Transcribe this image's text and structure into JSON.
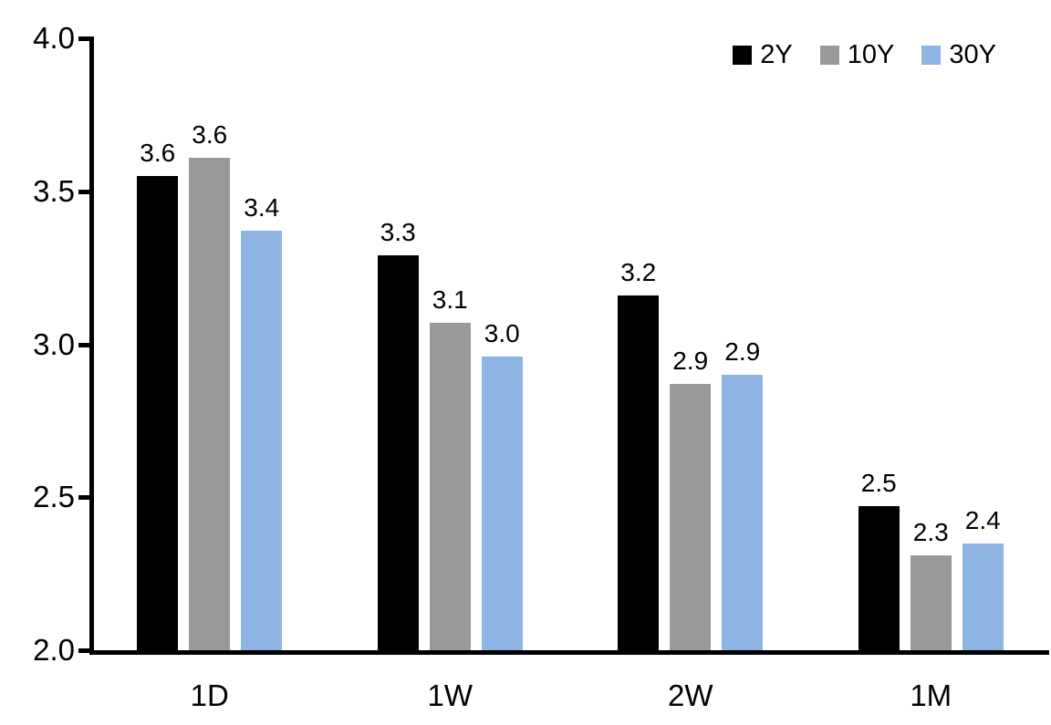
{
  "chart_data": {
    "type": "bar",
    "title": "",
    "xlabel": "",
    "ylabel": "",
    "grid": false,
    "legend_position": "top-right",
    "categories": [
      "1D",
      "1W",
      "2W",
      "1M"
    ],
    "series": [
      {
        "name": "2Y",
        "color": "#000000",
        "values": [
          3.55,
          3.29,
          3.16,
          2.47
        ],
        "labels": [
          "3.6",
          "3.3",
          "3.2",
          "2.5"
        ]
      },
      {
        "name": "10Y",
        "color": "#999999",
        "values": [
          3.61,
          3.07,
          2.87,
          2.31
        ],
        "labels": [
          "3.6",
          "3.1",
          "2.9",
          "2.3"
        ]
      },
      {
        "name": "30Y",
        "color": "#8DB4E2",
        "values": [
          3.37,
          2.96,
          2.9,
          2.35
        ],
        "labels": [
          "3.4",
          "3.0",
          "2.9",
          "2.4"
        ]
      }
    ],
    "ylim": [
      2.0,
      4.0
    ],
    "yticks": [
      {
        "value": 2.0,
        "label": "2.0"
      },
      {
        "value": 2.5,
        "label": "2.5"
      },
      {
        "value": 3.0,
        "label": "3.0"
      },
      {
        "value": 3.5,
        "label": "3.5"
      },
      {
        "value": 4.0,
        "label": "4.0"
      }
    ],
    "axis_color": "#000000"
  }
}
